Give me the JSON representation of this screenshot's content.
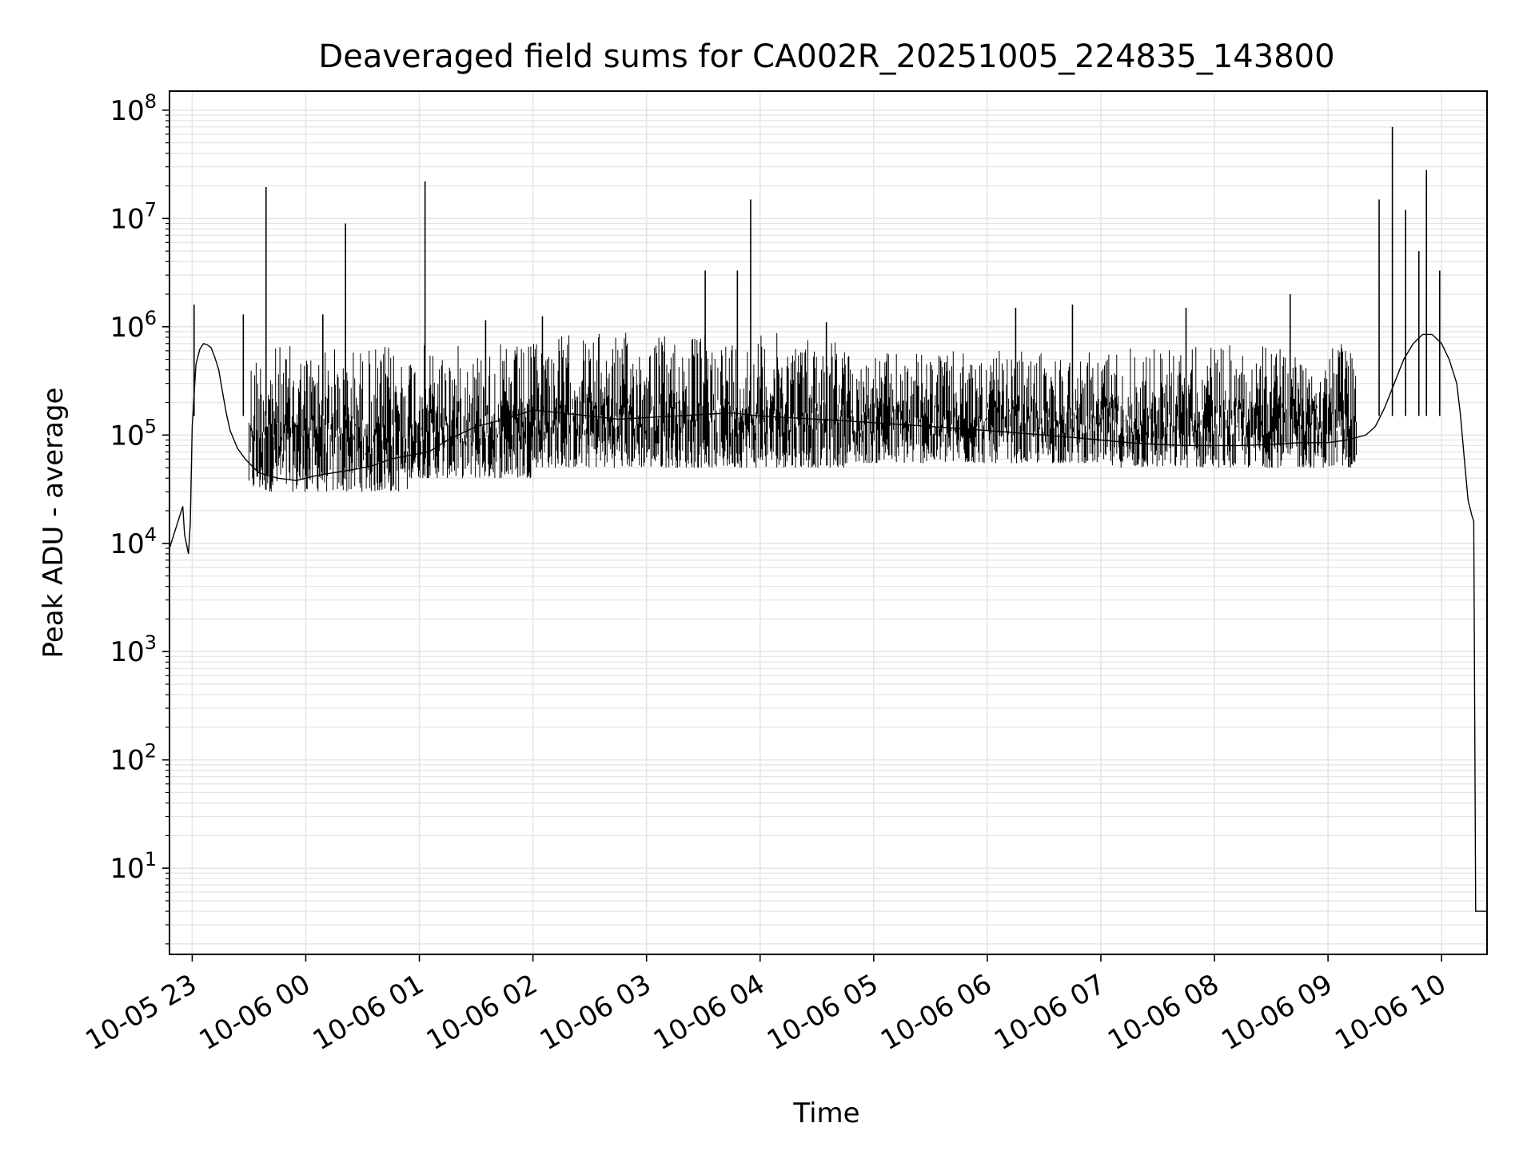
{
  "chart_data": {
    "type": "line",
    "title": "Deaveraged field sums for CA002R_20251005_224835_143800",
    "xlabel": "Time",
    "ylabel": "Peak ADU - average",
    "x_scale": "time",
    "y_scale": "log",
    "xlim": [
      "2025-10-05 22:48",
      "2025-10-06 10:24"
    ],
    "ylim": [
      1.6,
      150000000
    ],
    "x_ticks": [
      {
        "t": "2025-10-05 23:00",
        "label": "10-05 23"
      },
      {
        "t": "2025-10-06 00:00",
        "label": "10-06 00"
      },
      {
        "t": "2025-10-06 01:00",
        "label": "10-06 01"
      },
      {
        "t": "2025-10-06 02:00",
        "label": "10-06 02"
      },
      {
        "t": "2025-10-06 03:00",
        "label": "10-06 03"
      },
      {
        "t": "2025-10-06 04:00",
        "label": "10-06 04"
      },
      {
        "t": "2025-10-06 05:00",
        "label": "10-06 05"
      },
      {
        "t": "2025-10-06 06:00",
        "label": "10-06 06"
      },
      {
        "t": "2025-10-06 07:00",
        "label": "10-06 07"
      },
      {
        "t": "2025-10-06 08:00",
        "label": "10-06 08"
      },
      {
        "t": "2025-10-06 09:00",
        "label": "10-06 09"
      },
      {
        "t": "2025-10-06 10:00",
        "label": "10-06 10"
      }
    ],
    "y_ticks": [
      {
        "value": 10,
        "base": "10",
        "exp": "1"
      },
      {
        "value": 100,
        "base": "10",
        "exp": "2"
      },
      {
        "value": 1000,
        "base": "10",
        "exp": "3"
      },
      {
        "value": 10000,
        "base": "10",
        "exp": "4"
      },
      {
        "value": 100000,
        "base": "10",
        "exp": "5"
      },
      {
        "value": 1000000,
        "base": "10",
        "exp": "6"
      },
      {
        "value": 10000000,
        "base": "10",
        "exp": "7"
      },
      {
        "value": 100000000,
        "base": "10",
        "exp": "8"
      }
    ],
    "grid": true,
    "legend": false,
    "line_color": "#000000",
    "grid_color": "#e6e6e6",
    "series": [
      {
        "t": [
          "2025-10-05 22:48",
          "2025-10-05 22:52",
          "2025-10-05 22:55",
          "2025-10-05 22:56",
          "2025-10-05 22:58",
          "2025-10-05 22:59",
          "2025-10-05 23:00",
          "2025-10-05 23:02",
          "2025-10-05 23:04",
          "2025-10-05 23:06",
          "2025-10-05 23:08",
          "2025-10-05 23:10",
          "2025-10-05 23:12",
          "2025-10-05 23:14",
          "2025-10-05 23:16",
          "2025-10-05 23:18",
          "2025-10-05 23:20",
          "2025-10-05 23:24",
          "2025-10-05 23:28",
          "2025-10-05 23:35",
          "2025-10-05 23:45",
          "2025-10-05 23:55",
          "2025-10-06 00:05",
          "2025-10-06 00:15",
          "2025-10-06 00:25",
          "2025-10-06 00:35",
          "2025-10-06 00:45",
          "2025-10-06 00:55",
          "2025-10-06 01:05",
          "2025-10-06 01:15",
          "2025-10-06 01:30",
          "2025-10-06 01:45",
          "2025-10-06 02:00",
          "2025-10-06 02:15",
          "2025-10-06 02:30",
          "2025-10-06 02:45",
          "2025-10-06 03:00",
          "2025-10-06 03:15",
          "2025-10-06 03:30",
          "2025-10-06 03:45",
          "2025-10-06 04:00",
          "2025-10-06 04:15",
          "2025-10-06 04:30",
          "2025-10-06 04:45",
          "2025-10-06 05:00",
          "2025-10-06 05:15",
          "2025-10-06 05:30",
          "2025-10-06 05:45",
          "2025-10-06 06:00",
          "2025-10-06 06:15",
          "2025-10-06 06:30",
          "2025-10-06 06:45",
          "2025-10-06 07:00",
          "2025-10-06 07:15",
          "2025-10-06 07:30",
          "2025-10-06 07:45",
          "2025-10-06 08:00",
          "2025-10-06 08:15",
          "2025-10-06 08:30",
          "2025-10-06 08:45",
          "2025-10-06 09:00",
          "2025-10-06 09:10",
          "2025-10-06 09:15",
          "2025-10-06 09:20",
          "2025-10-06 09:25",
          "2025-10-06 09:30",
          "2025-10-06 09:35",
          "2025-10-06 09:40",
          "2025-10-06 09:45",
          "2025-10-06 09:50",
          "2025-10-06 09:55",
          "2025-10-06 10:00",
          "2025-10-06 10:04",
          "2025-10-06 10:08",
          "2025-10-06 10:10",
          "2025-10-06 10:12",
          "2025-10-06 10:14",
          "2025-10-06 10:16",
          "2025-10-06 10:17",
          "2025-10-06 10:18",
          "2025-10-06 10:19",
          "2025-10-06 10:24"
        ],
        "y": [
          9000,
          15000,
          22000,
          12000,
          8000,
          15000,
          120000,
          450000,
          620000,
          700000,
          680000,
          640000,
          520000,
          400000,
          250000,
          160000,
          110000,
          75000,
          60000,
          45000,
          40000,
          38000,
          42000,
          45000,
          48000,
          52000,
          60000,
          65000,
          70000,
          90000,
          120000,
          140000,
          170000,
          160000,
          150000,
          140000,
          145000,
          150000,
          155000,
          160000,
          150000,
          145000,
          140000,
          135000,
          130000,
          125000,
          120000,
          115000,
          110000,
          105000,
          100000,
          95000,
          90000,
          85000,
          82000,
          80000,
          80000,
          80000,
          82000,
          85000,
          85000,
          90000,
          95000,
          100000,
          120000,
          180000,
          300000,
          500000,
          700000,
          850000,
          850000,
          700000,
          500000,
          300000,
          150000,
          60000,
          25000,
          18000,
          16000,
          4,
          4,
          4
        ]
      }
    ],
    "bands": [
      {
        "from": "2025-10-05 23:30",
        "to": "2025-10-06 00:55",
        "low": 30000,
        "high": 700000
      },
      {
        "from": "2025-10-06 00:55",
        "to": "2025-10-06 02:00",
        "low": 40000,
        "high": 700000
      },
      {
        "from": "2025-10-06 02:00",
        "to": "2025-10-06 04:45",
        "low": 50000,
        "high": 900000
      },
      {
        "from": "2025-10-06 04:45",
        "to": "2025-10-06 07:00",
        "low": 55000,
        "high": 600000
      },
      {
        "from": "2025-10-06 07:00",
        "to": "2025-10-06 09:15",
        "low": 50000,
        "high": 700000
      }
    ],
    "spikes": [
      {
        "t": "2025-10-05 23:01",
        "y": 1600000
      },
      {
        "t": "2025-10-05 23:27",
        "y": 1300000
      },
      {
        "t": "2025-10-05 23:39",
        "y": 19500000
      },
      {
        "t": "2025-10-06 00:21",
        "y": 9000000
      },
      {
        "t": "2025-10-06 00:09",
        "y": 1300000
      },
      {
        "t": "2025-10-06 01:03",
        "y": 22000000
      },
      {
        "t": "2025-10-06 01:35",
        "y": 1150000
      },
      {
        "t": "2025-10-06 02:05",
        "y": 1250000
      },
      {
        "t": "2025-10-06 03:31",
        "y": 3300000
      },
      {
        "t": "2025-10-06 03:48",
        "y": 3300000
      },
      {
        "t": "2025-10-06 03:55",
        "y": 15000000
      },
      {
        "t": "2025-10-06 04:35",
        "y": 1100000
      },
      {
        "t": "2025-10-06 06:15",
        "y": 1500000
      },
      {
        "t": "2025-10-06 06:45",
        "y": 1600000
      },
      {
        "t": "2025-10-06 07:45",
        "y": 1500000
      },
      {
        "t": "2025-10-06 08:40",
        "y": 2000000
      },
      {
        "t": "2025-10-06 09:27",
        "y": 15000000
      },
      {
        "t": "2025-10-06 09:34",
        "y": 70000000
      },
      {
        "t": "2025-10-06 09:41",
        "y": 12000000
      },
      {
        "t": "2025-10-06 09:48",
        "y": 5000000
      },
      {
        "t": "2025-10-06 09:52",
        "y": 28000000
      },
      {
        "t": "2025-10-06 09:59",
        "y": 3300000
      }
    ]
  }
}
